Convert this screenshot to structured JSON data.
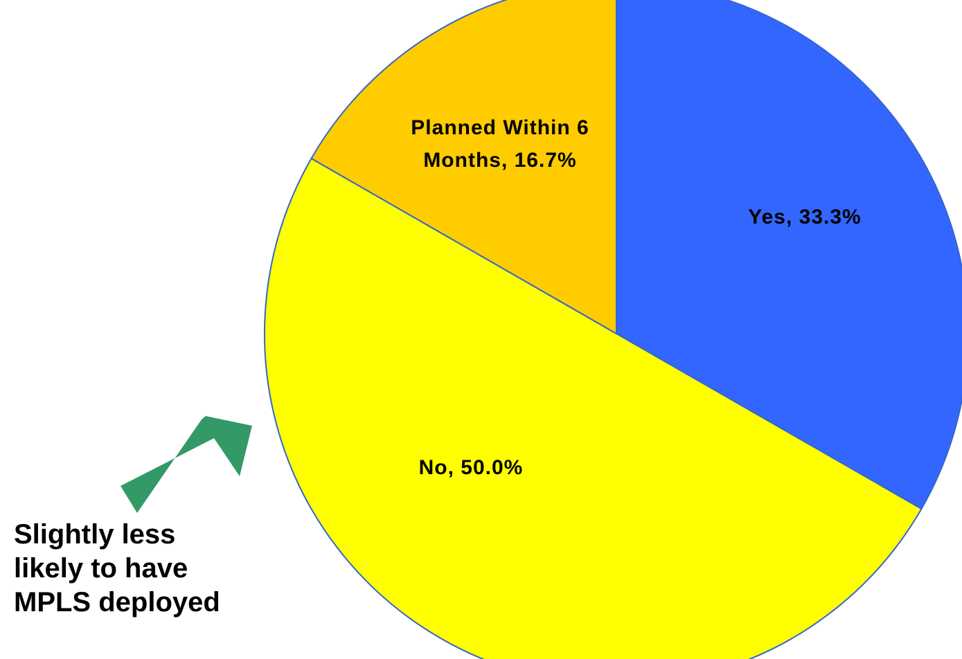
{
  "chart_data": {
    "type": "pie",
    "slices": [
      {
        "label": "Yes, 33.3%",
        "name": "Yes",
        "value": 33.3,
        "color": "#3366FF"
      },
      {
        "label": "No, 50.0%",
        "name": "No",
        "value": 50.0,
        "color": "#FFFF00"
      },
      {
        "label_lines": [
          "Planned Within 6",
          "Months, 16.7%"
        ],
        "name": "Planned Within 6 Months",
        "value": 16.7,
        "color": "#FFCC00"
      }
    ],
    "start_angle": "12 o'clock",
    "direction": "clockwise",
    "edge_color": "#3366CC"
  },
  "callout": {
    "lines": [
      "Slightly less",
      "likely to have",
      "MPLS deployed"
    ],
    "arrow_color": "#339966"
  }
}
